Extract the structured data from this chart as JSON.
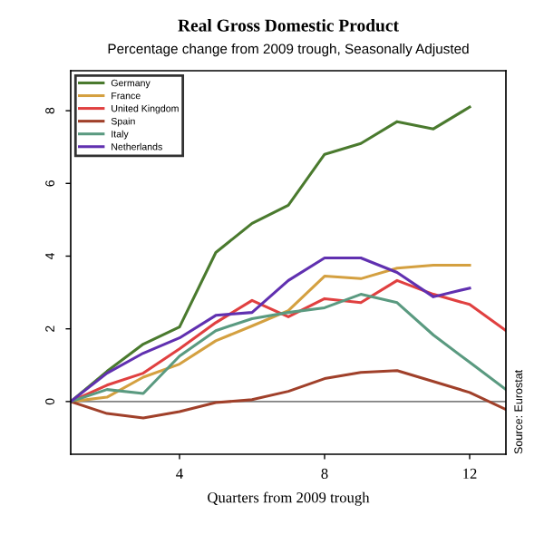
{
  "chart_data": {
    "type": "line",
    "title": "Real Gross Domestic Product",
    "subtitle": "Percentage change from 2009 trough, Seasonally Adjusted",
    "xlabel": "Quarters from 2009 trough",
    "x": [
      1,
      2,
      3,
      4,
      5,
      6,
      7,
      8,
      9,
      10,
      11,
      12,
      13
    ],
    "series": [
      {
        "name": "Germany",
        "color": "#4a7a2e",
        "values": [
          0,
          0.83,
          1.58,
          2.05,
          4.1,
          4.9,
          5.4,
          6.8,
          7.1,
          7.7,
          7.5,
          8.1,
          null
        ]
      },
      {
        "name": "France",
        "color": "#d4a040",
        "values": [
          0,
          0.12,
          0.67,
          1.03,
          1.67,
          2.08,
          2.5,
          3.45,
          3.38,
          3.67,
          3.75,
          3.75,
          null
        ]
      },
      {
        "name": "United Kingdom",
        "color": "#e04040",
        "values": [
          0,
          0.45,
          0.78,
          1.45,
          2.17,
          2.78,
          2.33,
          2.83,
          2.72,
          3.33,
          2.95,
          2.67,
          1.95
        ]
      },
      {
        "name": "Spain",
        "color": "#a0402a",
        "values": [
          0,
          -0.33,
          -0.45,
          -0.28,
          -0.03,
          0.05,
          0.28,
          0.63,
          0.8,
          0.85,
          0.55,
          0.25,
          -0.22
        ]
      },
      {
        "name": "Italy",
        "color": "#5a9a80",
        "values": [
          0,
          0.33,
          0.22,
          1.25,
          1.95,
          2.28,
          2.45,
          2.58,
          2.95,
          2.72,
          1.83,
          1.08,
          0.33
        ]
      },
      {
        "name": "Netherlands",
        "color": "#6030b0",
        "values": [
          0,
          0.78,
          1.33,
          1.75,
          2.37,
          2.45,
          3.33,
          3.95,
          3.95,
          3.55,
          2.88,
          3.12,
          null
        ]
      }
    ],
    "xlim": [
      1,
      13
    ],
    "ylim": [
      -1.45,
      9.1
    ],
    "xticks": [
      4,
      8,
      12
    ],
    "yticks": [
      0,
      2,
      4,
      6,
      8
    ],
    "ref_lines": [
      {
        "axis": "y",
        "value": 0,
        "color": "#808080"
      }
    ],
    "annotations": [
      "Source: Eurostat"
    ],
    "grid": false,
    "legend": "top left"
  }
}
